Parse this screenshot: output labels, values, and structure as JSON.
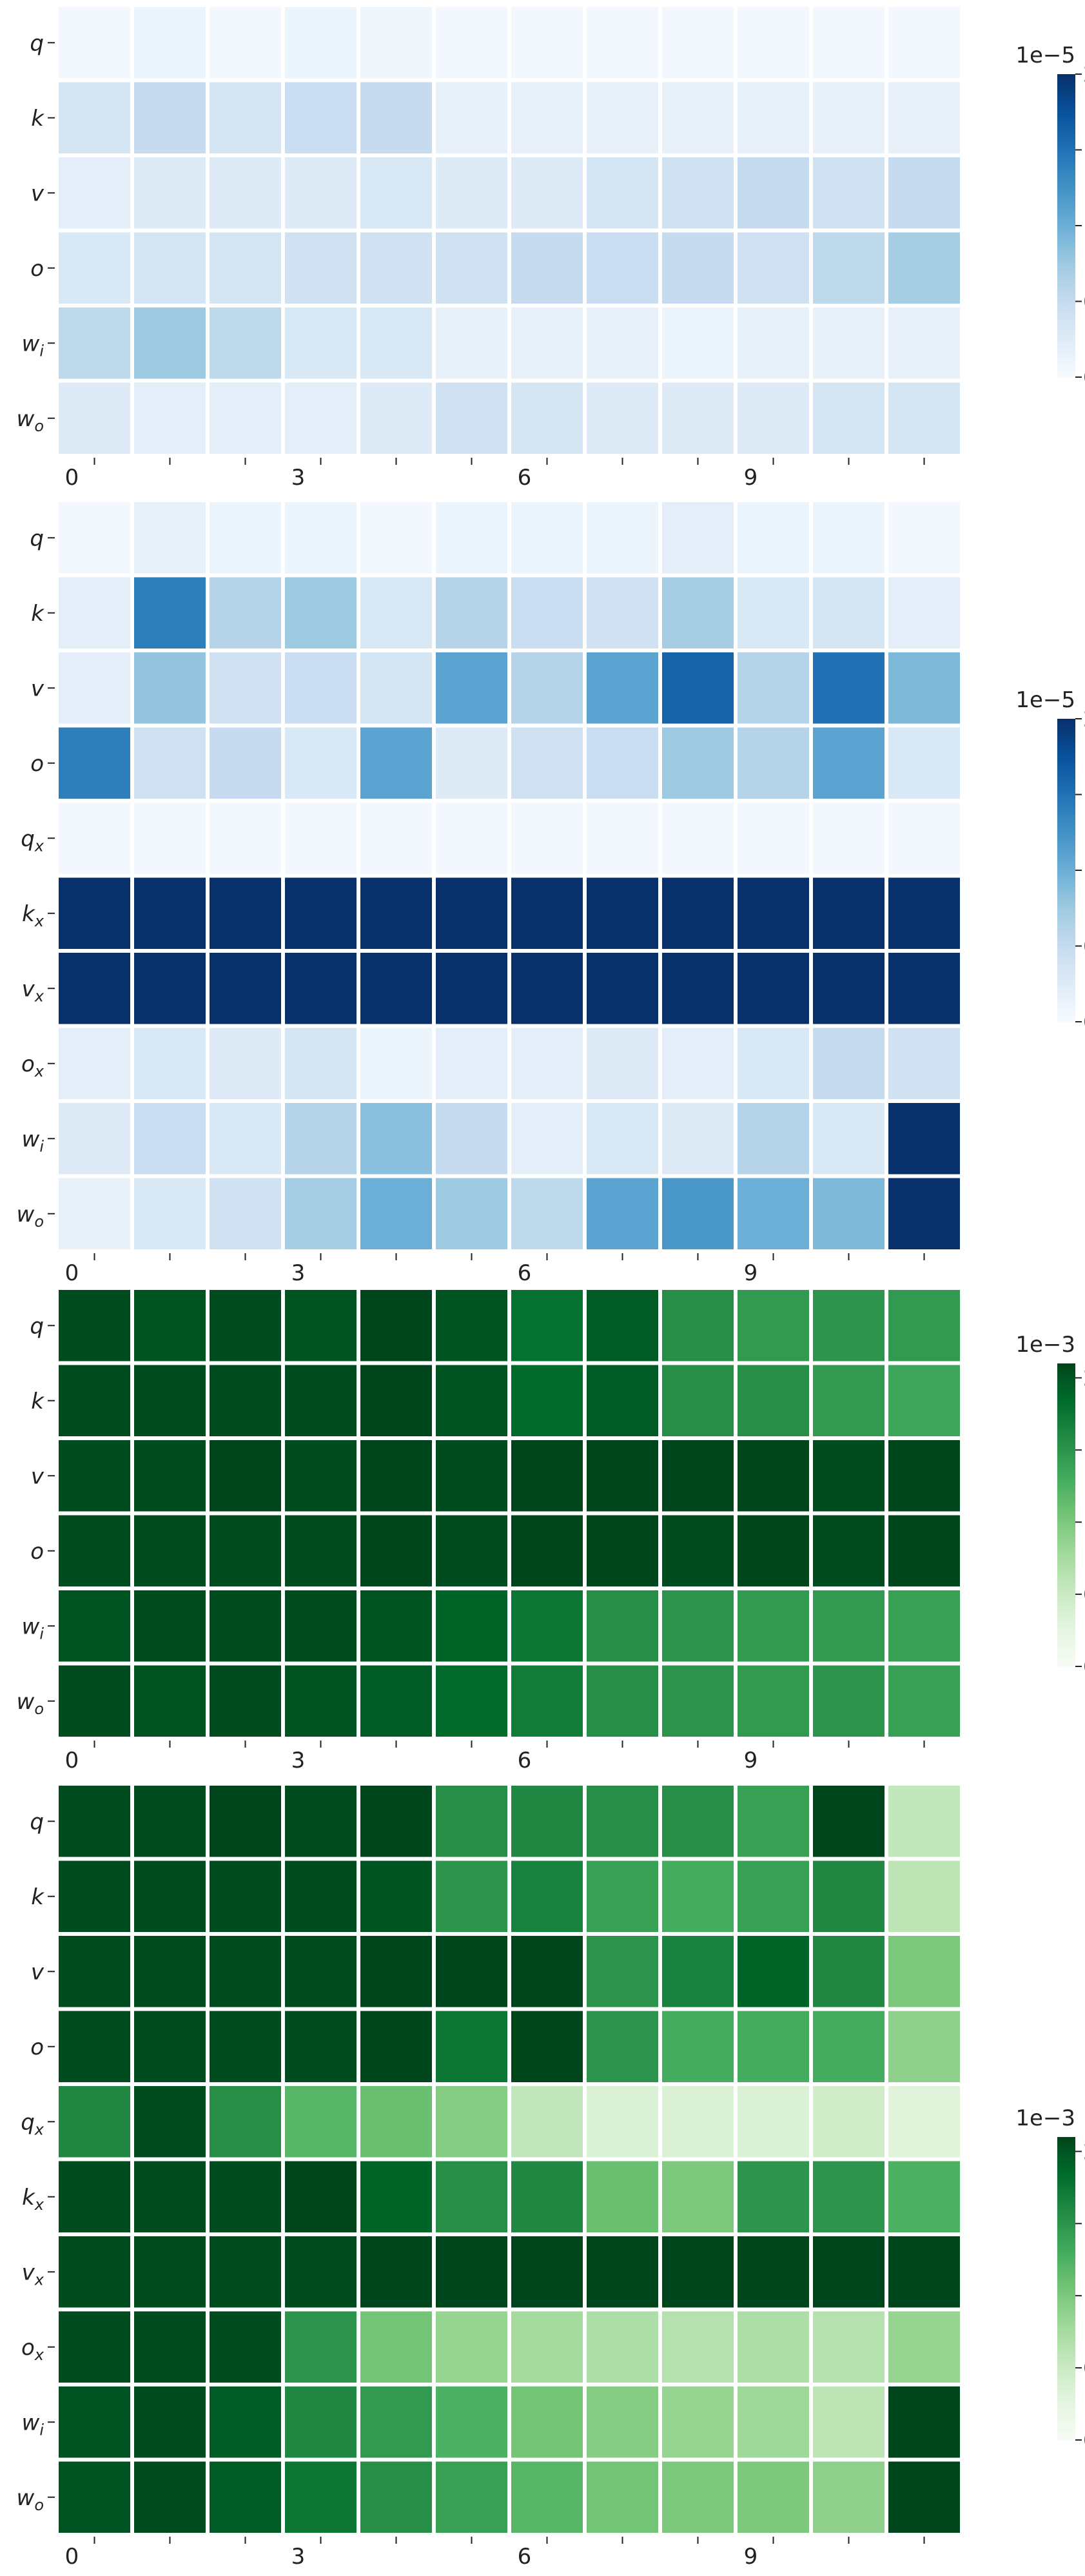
{
  "chart_data": [
    {
      "type": "heatmap",
      "colormap": "Blues",
      "x_ticks": [
        "0",
        "3",
        "6",
        "9"
      ],
      "x_tick_columns": [
        0,
        3,
        6,
        9
      ],
      "columns": 12,
      "rows": [
        "q",
        "k",
        "v",
        "o",
        "w_i",
        "w_o"
      ],
      "values": [
        [
          0.05,
          0.1,
          0.05,
          0.1,
          0.08,
          0.05,
          0.05,
          0.05,
          0.05,
          0.05,
          0.05,
          0.05
        ],
        [
          0.35,
          0.5,
          0.35,
          0.45,
          0.5,
          0.15,
          0.15,
          0.15,
          0.15,
          0.15,
          0.15,
          0.15
        ],
        [
          0.2,
          0.25,
          0.25,
          0.25,
          0.3,
          0.25,
          0.25,
          0.35,
          0.4,
          0.5,
          0.4,
          0.5
        ],
        [
          0.3,
          0.35,
          0.35,
          0.4,
          0.4,
          0.4,
          0.5,
          0.45,
          0.5,
          0.4,
          0.55,
          0.7
        ],
        [
          0.55,
          0.75,
          0.55,
          0.3,
          0.3,
          0.15,
          0.15,
          0.15,
          0.1,
          0.15,
          0.15,
          0.15
        ],
        [
          0.25,
          0.2,
          0.2,
          0.2,
          0.25,
          0.4,
          0.35,
          0.25,
          0.25,
          0.25,
          0.35,
          0.35
        ]
      ],
      "colorbar": {
        "min": 0.0,
        "max": 2.0,
        "ticks": [
          "0.0",
          "0.5",
          "1.0",
          "1.5",
          "2.0"
        ],
        "offset_label": "1e−5"
      }
    },
    {
      "type": "heatmap",
      "colormap": "Blues",
      "x_ticks": [
        "0",
        "3",
        "6",
        "9"
      ],
      "x_tick_columns": [
        0,
        3,
        6,
        9
      ],
      "columns": 12,
      "rows": [
        "q",
        "k",
        "v",
        "o",
        "q_x",
        "k_x",
        "v_x",
        "o_x",
        "w_i",
        "w_o"
      ],
      "values": [
        [
          0.05,
          0.15,
          0.1,
          0.1,
          0.05,
          0.1,
          0.1,
          0.1,
          0.2,
          0.1,
          0.1,
          0.05
        ],
        [
          0.2,
          1.4,
          0.6,
          0.75,
          0.3,
          0.6,
          0.45,
          0.4,
          0.7,
          0.3,
          0.35,
          0.2
        ],
        [
          0.2,
          0.8,
          0.4,
          0.45,
          0.35,
          1.1,
          0.6,
          1.1,
          1.6,
          0.6,
          1.5,
          0.9
        ],
        [
          1.4,
          0.4,
          0.5,
          0.3,
          1.1,
          0.25,
          0.4,
          0.45,
          0.75,
          0.6,
          1.1,
          0.3
        ],
        [
          0.05,
          0.05,
          0.05,
          0.05,
          0.05,
          0.05,
          0.05,
          0.05,
          0.05,
          0.05,
          0.05,
          0.05
        ],
        [
          2.0,
          2.0,
          2.0,
          2.0,
          2.0,
          2.0,
          2.0,
          2.0,
          2.0,
          2.0,
          2.0,
          2.0
        ],
        [
          2.0,
          2.0,
          2.0,
          2.0,
          2.0,
          2.0,
          2.0,
          2.0,
          2.0,
          2.0,
          2.0,
          2.0
        ],
        [
          0.2,
          0.3,
          0.25,
          0.35,
          0.1,
          0.2,
          0.2,
          0.25,
          0.2,
          0.3,
          0.5,
          0.4
        ],
        [
          0.25,
          0.45,
          0.3,
          0.6,
          0.85,
          0.5,
          0.2,
          0.3,
          0.25,
          0.6,
          0.3,
          2.0
        ],
        [
          0.15,
          0.3,
          0.4,
          0.7,
          1.0,
          0.75,
          0.55,
          1.1,
          1.2,
          1.0,
          0.9,
          2.0
        ]
      ],
      "colorbar": {
        "min": 0.0,
        "max": 2.0,
        "ticks": [
          "0.0",
          "0.5",
          "1.0",
          "1.5",
          "2.0"
        ],
        "offset_label": "1e−5"
      }
    },
    {
      "type": "heatmap",
      "colormap": "Greens",
      "x_ticks": [
        "0",
        "3",
        "6",
        "9"
      ],
      "x_tick_columns": [
        0,
        3,
        6,
        9
      ],
      "columns": 12,
      "rows": [
        "q",
        "k",
        "v",
        "o",
        "w_i",
        "w_o"
      ],
      "values": [
        [
          2.05,
          2.0,
          2.05,
          2.0,
          2.1,
          2.0,
          1.8,
          1.95,
          1.55,
          1.45,
          1.5,
          1.45
        ],
        [
          2.05,
          2.05,
          2.05,
          2.05,
          2.1,
          2.0,
          1.85,
          1.95,
          1.55,
          1.55,
          1.45,
          1.35
        ],
        [
          2.05,
          2.05,
          2.1,
          2.05,
          2.1,
          2.05,
          2.1,
          2.15,
          2.2,
          2.1,
          2.05,
          2.1
        ],
        [
          2.05,
          2.05,
          2.05,
          2.05,
          2.1,
          2.05,
          2.1,
          2.1,
          2.05,
          2.1,
          2.05,
          2.1
        ],
        [
          2.0,
          2.05,
          2.05,
          2.05,
          2.0,
          1.9,
          1.75,
          1.55,
          1.5,
          1.45,
          1.45,
          1.4
        ],
        [
          2.05,
          2.0,
          2.05,
          2.0,
          1.95,
          1.85,
          1.7,
          1.55,
          1.5,
          1.45,
          1.5,
          1.4
        ]
      ],
      "colorbar": {
        "min": 0.0,
        "max": 2.1,
        "ticks": [
          "0.0",
          "0.5",
          "1.0",
          "1.5",
          "2.0"
        ],
        "offset_label": "1e−3"
      }
    },
    {
      "type": "heatmap",
      "colormap": "Greens",
      "x_ticks": [
        "0",
        "3",
        "6",
        "9"
      ],
      "x_tick_columns": [
        0,
        3,
        6,
        9
      ],
      "columns": 12,
      "rows": [
        "q",
        "k",
        "v",
        "o",
        "q_x",
        "k_x",
        "v_x",
        "o_x",
        "w_i",
        "w_o"
      ],
      "values": [
        [
          2.05,
          2.05,
          2.1,
          2.05,
          2.1,
          1.55,
          1.6,
          1.55,
          1.55,
          1.4,
          2.1,
          0.55
        ],
        [
          2.05,
          2.05,
          2.05,
          2.05,
          2.0,
          1.5,
          1.65,
          1.4,
          1.3,
          1.4,
          1.6,
          0.6
        ],
        [
          2.05,
          2.05,
          2.05,
          2.05,
          2.1,
          2.1,
          2.15,
          1.5,
          1.65,
          1.9,
          1.6,
          1.0
        ],
        [
          2.05,
          2.05,
          2.05,
          2.05,
          2.1,
          1.75,
          2.15,
          1.5,
          1.3,
          1.3,
          1.3,
          0.9
        ],
        [
          1.6,
          2.05,
          1.55,
          1.2,
          1.1,
          0.95,
          0.55,
          0.35,
          0.35,
          0.35,
          0.45,
          0.3
        ],
        [
          2.05,
          2.05,
          2.05,
          2.1,
          1.9,
          1.55,
          1.6,
          1.1,
          1.0,
          1.5,
          1.5,
          1.25
        ],
        [
          2.05,
          2.05,
          2.05,
          2.05,
          2.1,
          2.1,
          2.15,
          2.15,
          2.2,
          2.15,
          2.15,
          2.15
        ],
        [
          2.05,
          2.05,
          2.05,
          1.5,
          1.05,
          0.85,
          0.75,
          0.7,
          0.65,
          0.7,
          0.65,
          0.85
        ],
        [
          2.0,
          2.05,
          1.95,
          1.6,
          1.45,
          1.25,
          1.05,
          0.95,
          0.85,
          0.8,
          0.6,
          2.15
        ],
        [
          2.0,
          2.05,
          1.95,
          1.75,
          1.55,
          1.4,
          1.2,
          1.05,
          1.0,
          1.0,
          0.9,
          2.15
        ]
      ],
      "colorbar": {
        "min": 0.0,
        "max": 2.1,
        "ticks": [
          "0.0",
          "0.5",
          "1.0",
          "1.5",
          "2.0"
        ],
        "offset_label": "1e−3"
      }
    }
  ]
}
